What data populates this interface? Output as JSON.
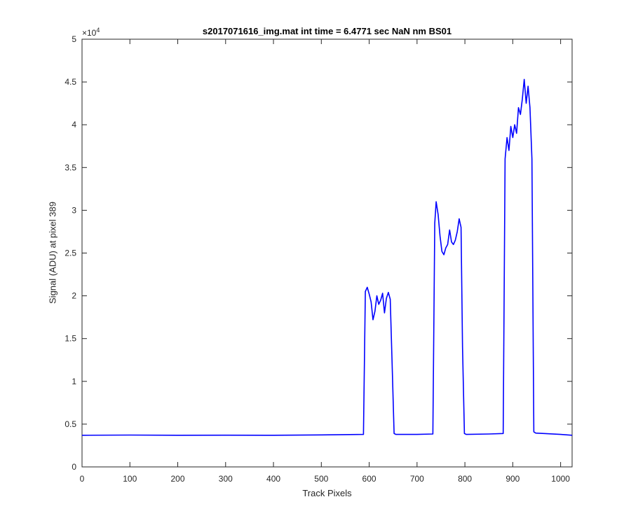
{
  "chart_data": {
    "type": "line",
    "title": "s2017071616_img.mat int time = 6.4771 sec  NaN nm BS01",
    "xlabel": "Track Pixels",
    "ylabel": "Signal (ADU) at pixel 389",
    "y_multiplier": {
      "base": "×10",
      "exponent": "4"
    },
    "xlim": [
      0,
      1024
    ],
    "ylim": [
      0,
      50000
    ],
    "xticks": [
      0,
      100,
      200,
      300,
      400,
      500,
      600,
      700,
      800,
      900,
      1000
    ],
    "xtick_labels": [
      "0",
      "100",
      "200",
      "300",
      "400",
      "500",
      "600",
      "700",
      "800",
      "900",
      "1000"
    ],
    "yticks": [
      0,
      5000,
      10000,
      15000,
      20000,
      25000,
      30000,
      35000,
      40000,
      45000,
      50000
    ],
    "ytick_labels": [
      "0",
      "0.5",
      "1",
      "1.5",
      "2",
      "2.5",
      "3",
      "3.5",
      "4",
      "4.5",
      "5"
    ],
    "grid": false,
    "series": [
      {
        "color": "#0000ff",
        "x": [
          0,
          100,
          200,
          300,
          400,
          500,
          588,
          592,
          596,
          600,
          604,
          608,
          612,
          616,
          620,
          624,
          628,
          632,
          636,
          640,
          644,
          648,
          652,
          656,
          700,
          733,
          737,
          740,
          744,
          748,
          752,
          756,
          760,
          764,
          768,
          772,
          776,
          780,
          784,
          788,
          792,
          795,
          799,
          803,
          850,
          880,
          884,
          888,
          892,
          896,
          900,
          904,
          908,
          912,
          916,
          920,
          924,
          928,
          932,
          936,
          940,
          944,
          948,
          1000,
          1024
        ],
        "y": [
          3700,
          3720,
          3700,
          3710,
          3700,
          3740,
          3800,
          20500,
          21000,
          20200,
          19300,
          17200,
          18200,
          20000,
          19000,
          19500,
          20300,
          18000,
          19700,
          20400,
          19600,
          12000,
          3900,
          3800,
          3800,
          3850,
          28500,
          31000,
          29500,
          27000,
          25200,
          24800,
          25600,
          26000,
          27700,
          26300,
          26000,
          26500,
          27500,
          29000,
          28000,
          14000,
          3900,
          3800,
          3850,
          3900,
          36000,
          38500,
          37000,
          39800,
          38500,
          40000,
          39000,
          42000,
          41200,
          43000,
          45300,
          42500,
          44500,
          42000,
          36000,
          4100,
          3950,
          3800,
          3700
        ]
      }
    ]
  }
}
